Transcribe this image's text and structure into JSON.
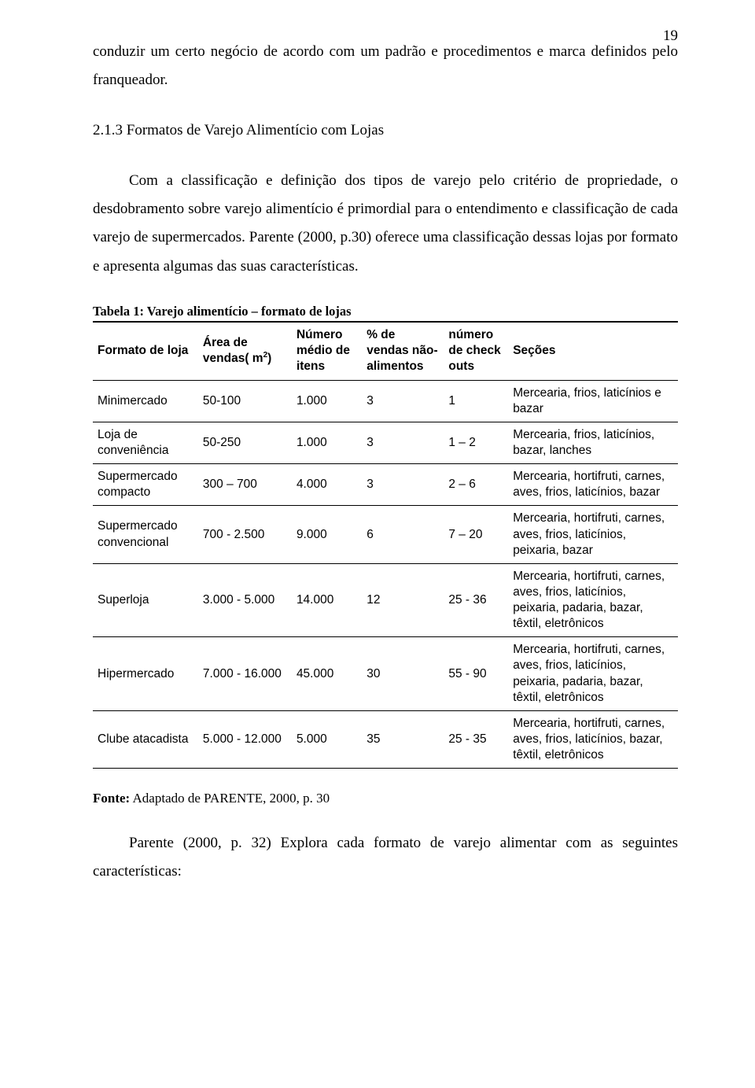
{
  "page_number": "19",
  "body": {
    "p1": "conduzir um certo negócio de acordo com um padrão e procedimentos e marca definidos pelo franqueador.",
    "section_title": "2.1.3 Formatos de Varejo Alimentício com Lojas",
    "p2": "Com a classificação e definição dos tipos de varejo pelo critério de propriedade, o desdobramento sobre varejo alimentício é primordial para o entendimento e classificação de cada varejo de supermercados. Parente (2000, p.30) oferece uma classificação dessas lojas por formato e apresenta algumas das suas características.",
    "table_caption": "Tabela 1: Varejo alimentício – formato de lojas",
    "source_label": "Fonte:",
    "source_text": " Adaptado de PARENTE, 2000, p. 30",
    "p3": "Parente (2000, p. 32) Explora   cada formato de varejo alimentar com as seguintes características:"
  },
  "table": {
    "col_widths": [
      "18%",
      "16%",
      "12%",
      "14%",
      "11%",
      "29%"
    ],
    "headers": {
      "c0": "Formato de loja",
      "c1a": "Área de",
      "c1b": "vendas( m",
      "c1sup": "2",
      "c1c": ")",
      "c2": "Número médio de itens",
      "c3": "% de vendas não-alimentos",
      "c4": "número de check outs",
      "c5": "Seções"
    },
    "rows": [
      {
        "c0": "Minimercado",
        "c1": "50-100",
        "c2": "1.000",
        "c3": "3",
        "c4": "1",
        "c5": "Mercearia, frios, laticínios e bazar"
      },
      {
        "c0": "Loja de conveniência",
        "c1": "50-250",
        "c2": "1.000",
        "c3": "3",
        "c4": "1 – 2",
        "c5": "Mercearia, frios, laticínios, bazar, lanches"
      },
      {
        "c0": "Supermercado compacto",
        "c1": "300 – 700",
        "c2": "4.000",
        "c3": "3",
        "c4": "2 – 6",
        "c5": "Mercearia, hortifruti, carnes, aves, frios, laticínios, bazar"
      },
      {
        "c0": "Supermercado convencional",
        "c1": "700 - 2.500",
        "c2": "9.000",
        "c3": "6",
        "c4": "7 – 20",
        "c5": "Mercearia, hortifruti, carnes, aves, frios, laticínios, peixaria, bazar"
      },
      {
        "c0": "Superloja",
        "c1": "3.000 - 5.000",
        "c2": "14.000",
        "c3": "12",
        "c4": "25 - 36",
        "c5": "Mercearia, hortifruti, carnes, aves, frios, laticínios, peixaria, padaria, bazar, têxtil, eletrônicos"
      },
      {
        "c0": "Hipermercado",
        "c1": "7.000 - 16.000",
        "c2": "45.000",
        "c3": "30",
        "c4": "55 - 90",
        "c5": "Mercearia, hortifruti, carnes, aves, frios, laticínios, peixaria, padaria, bazar, têxtil, eletrônicos"
      },
      {
        "c0": "Clube atacadista",
        "c1": "5.000 - 12.000",
        "c2": "5.000",
        "c3": "35",
        "c4": "25 - 35",
        "c5": "Mercearia, hortifruti, carnes, aves, frios, laticínios, bazar, têxtil, eletrônicos"
      }
    ]
  }
}
